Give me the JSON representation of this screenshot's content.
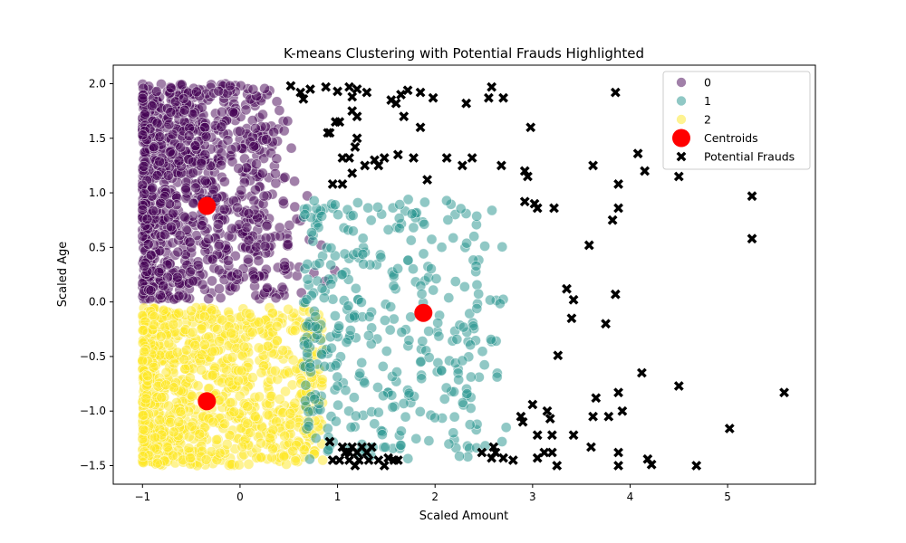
{
  "chart_data": {
    "type": "scatter",
    "title": "K-means Clustering with Potential Frauds Highlighted",
    "xlabel": "Scaled Amount",
    "ylabel": "Scaled Age",
    "xlim": [
      -1.3,
      5.9
    ],
    "ylim": [
      -1.67,
      2.17
    ],
    "xticks": [
      -1,
      0,
      1,
      2,
      3,
      4,
      5
    ],
    "xtick_labels": [
      "−1",
      "0",
      "1",
      "2",
      "3",
      "4",
      "5"
    ],
    "yticks": [
      -1.5,
      -1.0,
      -0.5,
      0.0,
      0.5,
      1.0,
      1.5,
      2.0
    ],
    "ytick_labels": [
      "−1.5",
      "−1.0",
      "−0.5",
      "0.0",
      "0.5",
      "1.0",
      "1.5",
      "2.0"
    ],
    "grid": false,
    "legend_position": "top-right",
    "colors": {
      "cluster_0": "#440154",
      "cluster_1": "#21918c",
      "cluster_2": "#fde725",
      "centroids": "#ff0000",
      "frauds": "#000000"
    },
    "legend": [
      {
        "label": "0",
        "kind": "cluster_0"
      },
      {
        "label": "1",
        "kind": "cluster_1"
      },
      {
        "label": "2",
        "kind": "cluster_2"
      },
      {
        "label": "Centroids",
        "kind": "centroids"
      },
      {
        "label": "Potential Frauds",
        "kind": "frauds"
      }
    ],
    "centroids": [
      {
        "x": -0.34,
        "y": 0.88
      },
      {
        "x": 1.88,
        "y": -0.1
      },
      {
        "x": -0.34,
        "y": -0.91
      }
    ],
    "potential_frauds": [
      [
        0.52,
        1.98
      ],
      [
        0.62,
        1.92
      ],
      [
        0.65,
        1.86
      ],
      [
        0.72,
        1.95
      ],
      [
        0.88,
        1.97
      ],
      [
        1.0,
        1.93
      ],
      [
        1.12,
        1.97
      ],
      [
        1.15,
        1.88
      ],
      [
        1.2,
        1.95
      ],
      [
        1.3,
        1.92
      ],
      [
        1.55,
        1.85
      ],
      [
        1.65,
        1.9
      ],
      [
        1.72,
        1.94
      ],
      [
        1.85,
        1.92
      ],
      [
        1.98,
        1.87
      ],
      [
        2.58,
        1.97
      ],
      [
        2.7,
        1.87
      ],
      [
        2.55,
        1.87
      ],
      [
        3.85,
        1.92
      ],
      [
        2.32,
        1.82
      ],
      [
        1.6,
        1.82
      ],
      [
        1.68,
        1.7
      ],
      [
        1.15,
        1.75
      ],
      [
        1.2,
        1.7
      ],
      [
        0.92,
        1.55
      ],
      [
        0.98,
        1.65
      ],
      [
        1.02,
        1.65
      ],
      [
        0.9,
        1.55
      ],
      [
        1.85,
        1.6
      ],
      [
        2.98,
        1.6
      ],
      [
        1.18,
        1.42
      ],
      [
        1.2,
        1.5
      ],
      [
        1.05,
        1.32
      ],
      [
        1.12,
        1.32
      ],
      [
        1.28,
        1.25
      ],
      [
        1.42,
        1.25
      ],
      [
        1.38,
        1.3
      ],
      [
        1.48,
        1.32
      ],
      [
        1.62,
        1.35
      ],
      [
        1.78,
        1.32
      ],
      [
        2.12,
        1.32
      ],
      [
        2.28,
        1.25
      ],
      [
        2.38,
        1.32
      ],
      [
        2.68,
        1.25
      ],
      [
        2.92,
        1.2
      ],
      [
        2.95,
        1.15
      ],
      [
        1.15,
        1.18
      ],
      [
        1.05,
        1.08
      ],
      [
        0.95,
        1.08
      ],
      [
        1.92,
        1.12
      ],
      [
        3.62,
        1.25
      ],
      [
        4.08,
        1.36
      ],
      [
        4.15,
        1.2
      ],
      [
        4.5,
        1.15
      ],
      [
        5.25,
        0.97
      ],
      [
        3.88,
        1.08
      ],
      [
        2.92,
        0.92
      ],
      [
        3.02,
        0.9
      ],
      [
        3.05,
        0.86
      ],
      [
        3.22,
        0.86
      ],
      [
        3.88,
        0.86
      ],
      [
        3.82,
        0.75
      ],
      [
        3.58,
        0.52
      ],
      [
        5.25,
        0.58
      ],
      [
        3.35,
        0.12
      ],
      [
        3.42,
        0.02
      ],
      [
        3.85,
        0.07
      ],
      [
        3.4,
        -0.15
      ],
      [
        3.75,
        -0.2
      ],
      [
        3.26,
        -0.49
      ],
      [
        4.12,
        -0.65
      ],
      [
        4.5,
        -0.77
      ],
      [
        5.58,
        -0.83
      ],
      [
        3.88,
        -0.83
      ],
      [
        3.65,
        -0.88
      ],
      [
        3.0,
        -0.94
      ],
      [
        3.92,
        -1.0
      ],
      [
        3.15,
        -1.0
      ],
      [
        3.18,
        -1.07
      ],
      [
        3.62,
        -1.05
      ],
      [
        3.78,
        -1.05
      ],
      [
        2.88,
        -1.05
      ],
      [
        2.9,
        -1.1
      ],
      [
        5.02,
        -1.16
      ],
      [
        3.05,
        -1.22
      ],
      [
        3.2,
        -1.22
      ],
      [
        3.42,
        -1.22
      ],
      [
        3.6,
        -1.33
      ],
      [
        3.12,
        -1.38
      ],
      [
        3.2,
        -1.38
      ],
      [
        3.88,
        -1.38
      ],
      [
        2.6,
        -1.33
      ],
      [
        2.48,
        -1.38
      ],
      [
        2.58,
        -1.43
      ],
      [
        2.62,
        -1.38
      ],
      [
        2.7,
        -1.43
      ],
      [
        2.8,
        -1.45
      ],
      [
        3.05,
        -1.43
      ],
      [
        3.25,
        -1.5
      ],
      [
        3.88,
        -1.5
      ],
      [
        4.18,
        -1.44
      ],
      [
        4.22,
        -1.49
      ],
      [
        4.68,
        -1.5
      ],
      [
        0.92,
        -1.28
      ],
      [
        1.05,
        -1.33
      ],
      [
        1.12,
        -1.38
      ],
      [
        1.15,
        -1.33
      ],
      [
        1.2,
        -1.38
      ],
      [
        1.25,
        -1.33
      ],
      [
        1.3,
        -1.38
      ],
      [
        1.35,
        -1.33
      ],
      [
        0.95,
        -1.45
      ],
      [
        1.02,
        -1.45
      ],
      [
        1.12,
        -1.45
      ],
      [
        1.22,
        -1.45
      ],
      [
        1.32,
        -1.45
      ],
      [
        1.42,
        -1.45
      ],
      [
        1.48,
        -1.5
      ],
      [
        1.58,
        -1.45
      ],
      [
        1.62,
        -1.45
      ],
      [
        1.18,
        -1.5
      ],
      [
        1.52,
        -1.43
      ],
      [
        1.08,
        -1.38
      ]
    ]
  }
}
